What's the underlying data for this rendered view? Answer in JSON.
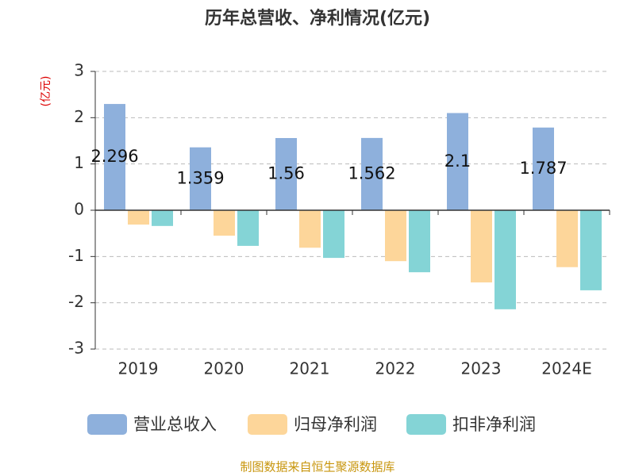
{
  "chart_data": {
    "type": "bar",
    "title": "历年总营收、净利情况(亿元)",
    "y_label": "(亿元)",
    "categories": [
      "2019",
      "2020",
      "2021",
      "2022",
      "2023",
      "2024E"
    ],
    "series": [
      {
        "name": "营业总收入",
        "color": "#8eb0dc",
        "values": [
          2.296,
          1.359,
          1.56,
          1.562,
          2.1,
          1.787
        ]
      },
      {
        "name": "归母净利润",
        "color": "#fdd69a",
        "values": [
          -0.31,
          -0.55,
          -0.81,
          -1.1,
          -1.56,
          -1.23
        ]
      },
      {
        "name": "扣非净利润",
        "color": "#84d4d6",
        "values": [
          -0.34,
          -0.77,
          -1.03,
          -1.34,
          -2.14,
          -1.73
        ]
      }
    ],
    "labeled_series": 0,
    "ylim": [
      -3,
      3
    ],
    "yticks": [
      -3,
      -2,
      -1,
      0,
      1,
      2,
      3
    ],
    "grid": true,
    "source": "制图数据来自恒生聚源数据库"
  }
}
